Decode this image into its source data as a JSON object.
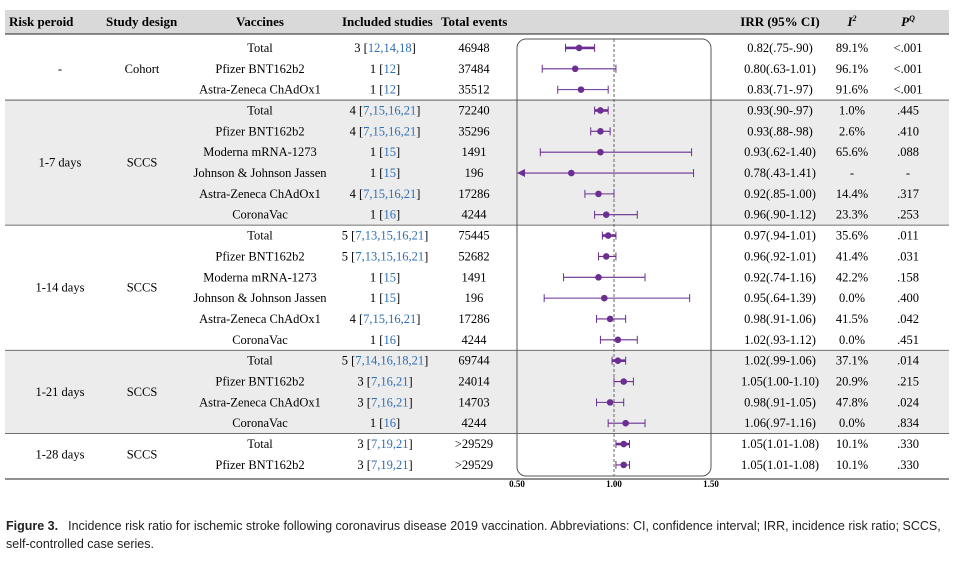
{
  "headers": {
    "risk": "Risk peroid",
    "design": "Study design",
    "vaccines": "Vaccines",
    "included": "Included studies",
    "events": "Total events",
    "irr": "IRR (95% CI)",
    "i2_main": "I",
    "i2_sup": "2",
    "pq_main": "P",
    "pq_sup": "Q"
  },
  "groups": [
    {
      "risk": "-",
      "design": "Cohort",
      "shaded": false,
      "rows": [
        {
          "vaccine": "Total",
          "n": "3",
          "refs": "12,14,18",
          "events": "46948",
          "irr": "0.82(.75-.90)",
          "i2": "89.1%",
          "pq": "<.001"
        },
        {
          "vaccine": "Pfizer BNT162b2",
          "n": "1",
          "refs": "12",
          "events": "37484",
          "irr": "0.80(.63-1.01)",
          "i2": "96.1%",
          "pq": "<.001"
        },
        {
          "vaccine": "Astra-Zeneca ChAdOx1",
          "n": "1",
          "refs": "12",
          "events": "35512",
          "irr": "0.83(.71-.97)",
          "i2": "91.6%",
          "pq": "<.001"
        }
      ]
    },
    {
      "risk": "1-7 days",
      "design": "SCCS",
      "shaded": true,
      "rows": [
        {
          "vaccine": "Total",
          "n": "4",
          "refs": "7,15,16,21",
          "events": "72240",
          "irr": "0.93(.90-.97)",
          "i2": "1.0%",
          "pq": ".445"
        },
        {
          "vaccine": "Pfizer BNT162b2",
          "n": "4",
          "refs": "7,15,16,21",
          "events": "35296",
          "irr": "0.93(.88-.98)",
          "i2": "2.6%",
          "pq": ".410"
        },
        {
          "vaccine": "Moderna mRNA-1273",
          "n": "1",
          "refs": "15",
          "events": "1491",
          "irr": "0.93(.62-1.40)",
          "i2": "65.6%",
          "pq": ".088"
        },
        {
          "vaccine": "Johnson & Johnson Jassen",
          "n": "1",
          "refs": "15",
          "events": "196",
          "irr": "0.78(.43-1.41)",
          "i2": "-",
          "pq": "-"
        },
        {
          "vaccine": "Astra-Zeneca ChAdOx1",
          "n": "4",
          "refs": "7,15,16,21",
          "events": "17286",
          "irr": "0.92(.85-1.00)",
          "i2": "14.4%",
          "pq": ".317"
        },
        {
          "vaccine": "CoronaVac",
          "n": "1",
          "refs": "16",
          "events": "4244",
          "irr": "0.96(.90-1.12)",
          "i2": "23.3%",
          "pq": ".253"
        }
      ]
    },
    {
      "risk": "1-14 days",
      "design": "SCCS",
      "shaded": false,
      "rows": [
        {
          "vaccine": "Total",
          "n": "5",
          "refs": "7,13,15,16,21",
          "events": "75445",
          "irr": "0.97(.94-1.01)",
          "i2": "35.6%",
          "pq": ".011"
        },
        {
          "vaccine": "Pfizer BNT162b2",
          "n": "5",
          "refs": "7,13,15,16,21",
          "events": "52682",
          "irr": "0.96(.92-1.01)",
          "i2": "41.4%",
          "pq": ".031"
        },
        {
          "vaccine": "Moderna mRNA-1273",
          "n": "1",
          "refs": "15",
          "events": "1491",
          "irr": "0.92(.74-1.16)",
          "i2": "42.2%",
          "pq": ".158"
        },
        {
          "vaccine": "Johnson & Johnson Jassen",
          "n": "1",
          "refs": "15",
          "events": "196",
          "irr": "0.95(.64-1.39)",
          "i2": "0.0%",
          "pq": ".400"
        },
        {
          "vaccine": "Astra-Zeneca ChAdOx1",
          "n": "4",
          "refs": "7,15,16,21",
          "events": "17286",
          "irr": "0.98(.91-1.06)",
          "i2": "41.5%",
          "pq": ".042"
        },
        {
          "vaccine": "CoronaVac",
          "n": "1",
          "refs": "16",
          "events": "4244",
          "irr": "1.02(.93-1.12)",
          "i2": "0.0%",
          "pq": ".451"
        }
      ]
    },
    {
      "risk": "1-21 days",
      "design": "SCCS",
      "shaded": true,
      "rows": [
        {
          "vaccine": "Total",
          "n": "5",
          "refs": "7,14,16,18,21",
          "events": "69744",
          "irr": "1.02(.99-1.06)",
          "i2": "37.1%",
          "pq": ".014"
        },
        {
          "vaccine": "Pfizer BNT162b2",
          "n": "3",
          "refs": "7,16,21",
          "events": "24014",
          "irr": "1.05(1.00-1.10)",
          "i2": "20.9%",
          "pq": ".215"
        },
        {
          "vaccine": "Astra-Zeneca ChAdOx1",
          "n": "3",
          "refs": "7,16,21",
          "events": "14703",
          "irr": "0.98(.91-1.05)",
          "i2": "47.8%",
          "pq": ".024"
        },
        {
          "vaccine": "CoronaVac",
          "n": "1",
          "refs": "16",
          "events": "4244",
          "irr": "1.06(.97-1.16)",
          "i2": "0.0%",
          "pq": ".834"
        }
      ]
    },
    {
      "risk": "1-28 days",
      "design": "SCCS",
      "shaded": false,
      "rows": [
        {
          "vaccine": "Total",
          "n": "3",
          "refs": "7,19,21",
          "events": ">29529",
          "irr": "1.05(1.01-1.08)",
          "i2": "10.1%",
          "pq": ".330"
        },
        {
          "vaccine": "Pfizer BNT162b2",
          "n": "3",
          "refs": "7,19,21",
          "events": ">29529",
          "irr": "1.05(1.01-1.08)",
          "i2": "10.1%",
          "pq": ".330"
        }
      ]
    }
  ],
  "chart_data": {
    "type": "forest",
    "xlim": [
      0.5,
      1.5
    ],
    "ticks": [
      "0.50",
      "1.00",
      "1.50"
    ],
    "reference_line": 1.0,
    "marker_color": "#6a2f91",
    "points": [
      {
        "est": 0.82,
        "lo": 0.75,
        "hi": 0.9
      },
      {
        "est": 0.8,
        "lo": 0.63,
        "hi": 1.01
      },
      {
        "est": 0.83,
        "lo": 0.71,
        "hi": 0.97
      },
      {
        "est": 0.93,
        "lo": 0.9,
        "hi": 0.97
      },
      {
        "est": 0.93,
        "lo": 0.88,
        "hi": 0.98
      },
      {
        "est": 0.93,
        "lo": 0.62,
        "hi": 1.4
      },
      {
        "est": 0.78,
        "lo": 0.43,
        "hi": 1.41
      },
      {
        "est": 0.92,
        "lo": 0.85,
        "hi": 1.0
      },
      {
        "est": 0.96,
        "lo": 0.9,
        "hi": 1.12
      },
      {
        "est": 0.97,
        "lo": 0.94,
        "hi": 1.01
      },
      {
        "est": 0.96,
        "lo": 0.92,
        "hi": 1.01
      },
      {
        "est": 0.92,
        "lo": 0.74,
        "hi": 1.16
      },
      {
        "est": 0.95,
        "lo": 0.64,
        "hi": 1.39
      },
      {
        "est": 0.98,
        "lo": 0.91,
        "hi": 1.06
      },
      {
        "est": 1.02,
        "lo": 0.93,
        "hi": 1.12
      },
      {
        "est": 1.02,
        "lo": 0.99,
        "hi": 1.06
      },
      {
        "est": 1.05,
        "lo": 1.0,
        "hi": 1.1
      },
      {
        "est": 0.98,
        "lo": 0.91,
        "hi": 1.05
      },
      {
        "est": 1.06,
        "lo": 0.97,
        "hi": 1.16
      },
      {
        "est": 1.05,
        "lo": 1.01,
        "hi": 1.08
      },
      {
        "est": 1.05,
        "lo": 1.01,
        "hi": 1.08
      }
    ]
  },
  "caption": {
    "label": "Figure 3.",
    "text": "Incidence risk ratio for ischemic stroke following coronavirus disease 2019 vaccination. Abbreviations: CI, confidence interval; IRR, incidence risk ratio; SCCS, self-controlled case series."
  }
}
